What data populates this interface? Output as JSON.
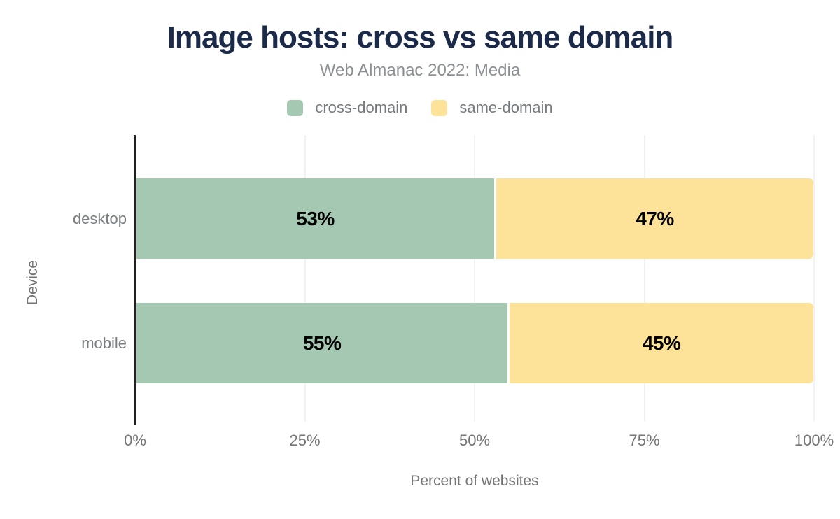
{
  "chart_data": {
    "type": "bar",
    "orientation": "horizontal",
    "stacked": true,
    "title": "Image hosts: cross vs same domain",
    "subtitle": "Web Almanac 2022: Media",
    "categories": [
      "desktop",
      "mobile"
    ],
    "series": [
      {
        "name": "cross-domain",
        "color": "#a5c8b3",
        "values": [
          53,
          55
        ],
        "data_labels": [
          "53%",
          "55%"
        ]
      },
      {
        "name": "same-domain",
        "color": "#fde39a",
        "values": [
          47,
          45
        ],
        "data_labels": [
          "47%",
          "45%"
        ]
      }
    ],
    "xlabel": "Percent of websites",
    "ylabel": "Device",
    "xlim": [
      0,
      100
    ],
    "xtick_values": [
      0,
      25,
      50,
      75,
      100
    ],
    "xtick_labels": [
      "0%",
      "25%",
      "50%",
      "75%",
      "100%"
    ],
    "grid": true,
    "legend_position": "top"
  },
  "style": {
    "background": "#ffffff",
    "title_color": "#1b2a49",
    "subtitle_color": "#8c9094",
    "legend_text_color": "#757a7e",
    "axis_text_color": "#757575",
    "category_label_color": "#7a7e81",
    "gridline_color": "#f2f2f2",
    "axis_line_color": "#212121",
    "bar_label_color": "#000000"
  }
}
